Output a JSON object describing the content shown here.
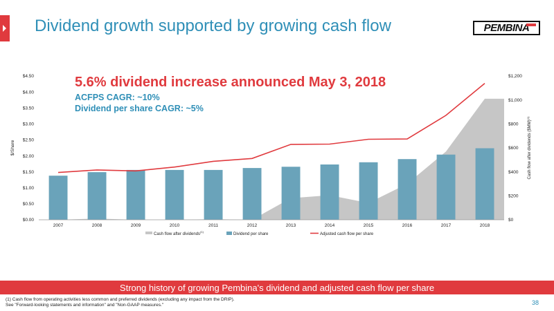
{
  "header": {
    "title": "Dividend growth supported by growing cash flow",
    "logo_text": "PEMBINA"
  },
  "callouts": {
    "headline": "5.6% dividend increase announced May 3, 2018",
    "line1": "ACFPS CAGR: ~10%",
    "line2": "Dividend per share CAGR: ~5%"
  },
  "chart_data": {
    "type": "bar",
    "categories": [
      "2007",
      "2008",
      "2009",
      "2010",
      "2011",
      "2012",
      "2013",
      "2014",
      "2015",
      "2016",
      "2017",
      "2018"
    ],
    "ylabel": "$/Share",
    "y2label": "Cash flow after dividends ($MM)",
    "y2label_sup": "(1)",
    "ylim": [
      0,
      4.5
    ],
    "y2lim": [
      0,
      1200
    ],
    "yticks": [
      "$0.00",
      "$0.50",
      "$1.00",
      "$1.50",
      "$2.00",
      "$2.50",
      "$3.00",
      "$3.50",
      "$4.00",
      "$4.50"
    ],
    "y2ticks": [
      "$0",
      "$200",
      "$400",
      "$600",
      "$800",
      "$1,000",
      "$1,200"
    ],
    "grid": false,
    "legend_position": "bottom",
    "series": [
      {
        "name": "Cash flow after dividends",
        "name_sup": "(1)",
        "type": "area",
        "axis": "right",
        "color": "#c6c6c6",
        "values": [
          0,
          10,
          0,
          0,
          5,
          0,
          180,
          205,
          140,
          300,
          570,
          1010
        ]
      },
      {
        "name": "Dividend per share",
        "type": "bar",
        "axis": "left",
        "color": "#6aa3ba",
        "values": [
          1.38,
          1.49,
          1.56,
          1.56,
          1.56,
          1.62,
          1.66,
          1.73,
          1.8,
          1.9,
          2.04,
          2.24
        ]
      },
      {
        "name": "Adjusted cash flow per share",
        "type": "line",
        "axis": "left",
        "color": "#e03a3e",
        "values": [
          1.48,
          1.56,
          1.53,
          1.65,
          1.83,
          1.92,
          2.36,
          2.37,
          2.52,
          2.53,
          3.27,
          4.27
        ]
      }
    ]
  },
  "banner": {
    "text": "Strong history of growing Pembina's dividend and adjusted cash flow per share"
  },
  "footnotes": {
    "line1": "(1) Cash flow from operating activities less common and preferred dividends (excluding any impact from the DRIP).",
    "line2": "See \"Forward-looking statements and information\" and \"Non-GAAP measures.\""
  },
  "page_number": "38"
}
